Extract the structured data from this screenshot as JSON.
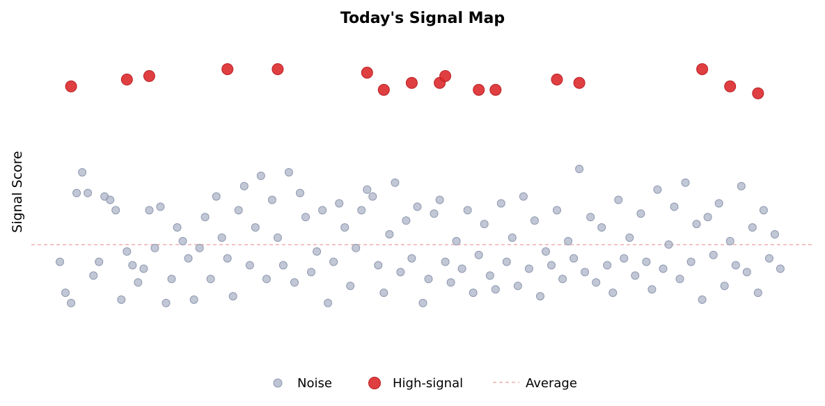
{
  "chart_data": {
    "type": "scatter",
    "title": "Today's Signal Map",
    "xlabel": "",
    "ylabel": "Signal Score",
    "average": 50,
    "grid": false,
    "legend_position": "bottom",
    "legend": [
      "Noise",
      "High-signal",
      "Average"
    ],
    "colors": {
      "noise": "#a7afc3",
      "noise_edge": "#8f98b0",
      "high_signal": "#dd2a2e",
      "high_signal_edge": "#b81e22",
      "average": "#ee9ea2"
    },
    "series": [
      {
        "name": "High-signal",
        "points": [
          [
            3,
            96
          ],
          [
            13,
            98
          ],
          [
            17,
            99
          ],
          [
            31,
            101
          ],
          [
            40,
            101
          ],
          [
            56,
            100
          ],
          [
            59,
            95
          ],
          [
            64,
            97
          ],
          [
            69,
            97
          ],
          [
            70,
            99
          ],
          [
            76,
            95
          ],
          [
            79,
            95
          ],
          [
            90,
            98
          ],
          [
            94,
            97
          ],
          [
            116,
            101
          ],
          [
            121,
            96
          ],
          [
            126,
            94
          ]
        ]
      },
      {
        "name": "Noise",
        "points": [
          [
            1,
            45
          ],
          [
            2,
            36
          ],
          [
            3,
            33
          ],
          [
            4,
            65
          ],
          [
            5,
            71
          ],
          [
            6,
            65
          ],
          [
            7,
            41
          ],
          [
            8,
            45
          ],
          [
            9,
            64
          ],
          [
            10,
            63
          ],
          [
            11,
            60
          ],
          [
            12,
            34
          ],
          [
            13,
            48
          ],
          [
            14,
            44
          ],
          [
            15,
            39
          ],
          [
            16,
            43
          ],
          [
            17,
            60
          ],
          [
            18,
            49
          ],
          [
            19,
            61
          ],
          [
            20,
            33
          ],
          [
            21,
            40
          ],
          [
            22,
            55
          ],
          [
            23,
            51
          ],
          [
            24,
            46
          ],
          [
            25,
            34
          ],
          [
            26,
            49
          ],
          [
            27,
            58
          ],
          [
            28,
            40
          ],
          [
            29,
            64
          ],
          [
            30,
            52
          ],
          [
            31,
            46
          ],
          [
            32,
            35
          ],
          [
            33,
            60
          ],
          [
            34,
            67
          ],
          [
            35,
            44
          ],
          [
            36,
            55
          ],
          [
            37,
            70
          ],
          [
            38,
            40
          ],
          [
            39,
            63
          ],
          [
            40,
            52
          ],
          [
            41,
            44
          ],
          [
            42,
            71
          ],
          [
            43,
            39
          ],
          [
            44,
            65
          ],
          [
            45,
            58
          ],
          [
            46,
            42
          ],
          [
            47,
            48
          ],
          [
            48,
            60
          ],
          [
            49,
            33
          ],
          [
            50,
            45
          ],
          [
            51,
            62
          ],
          [
            52,
            55
          ],
          [
            53,
            38
          ],
          [
            54,
            49
          ],
          [
            55,
            60
          ],
          [
            56,
            66
          ],
          [
            57,
            64
          ],
          [
            58,
            44
          ],
          [
            59,
            36
          ],
          [
            60,
            53
          ],
          [
            61,
            68
          ],
          [
            62,
            42
          ],
          [
            63,
            57
          ],
          [
            64,
            46
          ],
          [
            65,
            61
          ],
          [
            66,
            33
          ],
          [
            67,
            40
          ],
          [
            68,
            59
          ],
          [
            69,
            63
          ],
          [
            70,
            45
          ],
          [
            71,
            39
          ],
          [
            72,
            51
          ],
          [
            73,
            43
          ],
          [
            74,
            60
          ],
          [
            75,
            36
          ],
          [
            76,
            47
          ],
          [
            77,
            56
          ],
          [
            78,
            41
          ],
          [
            79,
            37
          ],
          [
            80,
            62
          ],
          [
            81,
            45
          ],
          [
            82,
            52
          ],
          [
            83,
            38
          ],
          [
            84,
            64
          ],
          [
            85,
            43
          ],
          [
            86,
            57
          ],
          [
            87,
            35
          ],
          [
            88,
            48
          ],
          [
            89,
            44
          ],
          [
            90,
            60
          ],
          [
            91,
            40
          ],
          [
            92,
            51
          ],
          [
            93,
            46
          ],
          [
            94,
            72
          ],
          [
            95,
            42
          ],
          [
            96,
            58
          ],
          [
            97,
            39
          ],
          [
            98,
            55
          ],
          [
            99,
            44
          ],
          [
            100,
            36
          ],
          [
            101,
            63
          ],
          [
            102,
            46
          ],
          [
            103,
            52
          ],
          [
            104,
            41
          ],
          [
            105,
            59
          ],
          [
            106,
            45
          ],
          [
            107,
            37
          ],
          [
            108,
            66
          ],
          [
            109,
            43
          ],
          [
            110,
            50
          ],
          [
            111,
            61
          ],
          [
            112,
            40
          ],
          [
            113,
            68
          ],
          [
            114,
            45
          ],
          [
            115,
            56
          ],
          [
            116,
            34
          ],
          [
            117,
            58
          ],
          [
            118,
            47
          ],
          [
            119,
            62
          ],
          [
            120,
            38
          ],
          [
            121,
            51
          ],
          [
            122,
            44
          ],
          [
            123,
            67
          ],
          [
            124,
            42
          ],
          [
            125,
            55
          ],
          [
            126,
            36
          ],
          [
            127,
            60
          ],
          [
            128,
            46
          ],
          [
            129,
            53
          ],
          [
            130,
            43
          ]
        ]
      }
    ],
    "xlim": [
      0,
      133
    ],
    "ylim": [
      15,
      110
    ]
  }
}
